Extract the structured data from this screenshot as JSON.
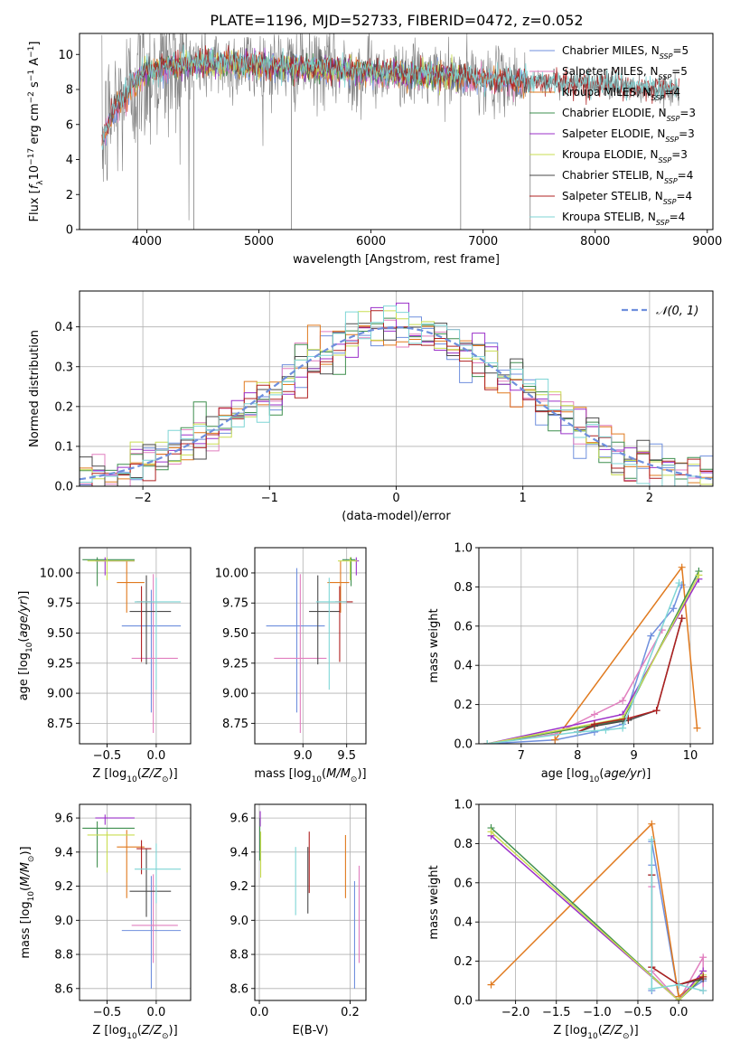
{
  "figure_title": "PLATE=1196, MJD=52733, FIBERID=0472, z=0.052",
  "colors": {
    "Chabrier MILES": "#6f8fdd",
    "Salpeter MILES": "#e17fbf",
    "Kroupa MILES": "#e07a1f",
    "Chabrier ELODIE": "#3f8f4f",
    "Salpeter ELODIE": "#9b30c9",
    "Kroupa ELODIE": "#c9dd52",
    "Chabrier STELIB": "#4a4a4a",
    "Salpeter STELIB": "#b02020",
    "Kroupa STELIB": "#7fd6d6",
    "data": "#808080",
    "normal": "#6f8fdd",
    "grid": "#b0b0b0"
  },
  "chart_data": [
    {
      "id": "spectrum",
      "type": "line",
      "xlabel": "wavelength [Angstrom, rest frame]",
      "ylabel": "Flux [f_λ 10^-17 erg cm^-2 s^-1 A^-1]",
      "xlim": [
        3400,
        9050
      ],
      "ylim": [
        0,
        11.2
      ],
      "xticks": [
        4000,
        5000,
        6000,
        7000,
        8000,
        9000
      ],
      "yticks": [
        0,
        2,
        4,
        6,
        8,
        10
      ],
      "grid": false,
      "legend_position": "right",
      "legend": [
        {
          "name": "Chabrier MILES",
          "nssp": "5"
        },
        {
          "name": "Salpeter MILES",
          "nssp": "5"
        },
        {
          "name": "Kroupa MILES",
          "nssp": "4"
        },
        {
          "name": "Chabrier ELODIE",
          "nssp": "3"
        },
        {
          "name": "Salpeter ELODIE",
          "nssp": "3"
        },
        {
          "name": "Kroupa ELODIE",
          "nssp": "3"
        },
        {
          "name": "Chabrier STELIB",
          "nssp": "4"
        },
        {
          "name": "Salpeter STELIB",
          "nssp": "4"
        },
        {
          "name": "Kroupa STELIB",
          "nssp": "4"
        }
      ],
      "observed_range": [
        3600,
        8750
      ],
      "continuum_knots": {
        "x": [
          3600,
          3700,
          3800,
          3900,
          4000,
          4200,
          4500,
          5000,
          5500,
          6000,
          6500,
          7000,
          7500,
          8000,
          8500,
          8750
        ],
        "y": [
          5.0,
          6.8,
          7.5,
          8.5,
          9.0,
          9.3,
          9.5,
          9.4,
          9.2,
          9.0,
          8.8,
          8.6,
          8.4,
          8.2,
          8.0,
          7.9
        ]
      },
      "model_ranges": {
        "Chabrier MILES": [
          3600,
          7400
        ],
        "Salpeter MILES": [
          3600,
          7400
        ],
        "Kroupa MILES": [
          3600,
          7400
        ],
        "Chabrier ELODIE": [
          3900,
          6800
        ],
        "Salpeter ELODIE": [
          3900,
          6800
        ],
        "Kroupa ELODIE": [
          3900,
          6800
        ],
        "Chabrier STELIB": [
          3600,
          8750
        ],
        "Salpeter STELIB": [
          3600,
          8750
        ],
        "Kroupa STELIB": [
          3600,
          8750
        ]
      }
    },
    {
      "id": "residuals",
      "type": "histogram",
      "xlabel": "(data-model)/error",
      "ylabel": "Normed distribution",
      "xlim": [
        -2.5,
        2.5
      ],
      "ylim": [
        0,
        0.49
      ],
      "xticks": [
        -2,
        -1,
        0,
        1,
        2
      ],
      "yticks": [
        0.0,
        0.1,
        0.2,
        0.3,
        0.4
      ],
      "grid": true,
      "bin_width": 0.1,
      "legend_position": "top-right",
      "normal_curve": {
        "label": "𝒩(0, 1)",
        "mean": 0,
        "sigma": 1
      }
    },
    {
      "id": "age_vs_Z",
      "type": "errorbar",
      "xlabel": "Z [log10(Z/Z⊙)]",
      "ylabel": "age  [log10(age/yr)]",
      "xlim": [
        -0.78,
        0.35
      ],
      "ylim": [
        8.58,
        10.21
      ],
      "xticks": [
        -0.5,
        0.0
      ],
      "yticks": [
        8.75,
        9.0,
        9.25,
        9.5,
        9.75,
        10.0
      ],
      "grid": true,
      "points": [
        {
          "model": "Chabrier MILES",
          "x": -0.05,
          "xerr": [
            0.3,
            0.3
          ],
          "y": 9.56,
          "yerr": [
            0.72,
            0.3
          ]
        },
        {
          "model": "Salpeter MILES",
          "x": -0.03,
          "xerr": [
            0.22,
            0.25
          ],
          "y": 9.29,
          "yerr": [
            0.62,
            0.7
          ]
        },
        {
          "model": "Kroupa MILES",
          "x": -0.3,
          "xerr": [
            0.1,
            0.18
          ],
          "y": 9.92,
          "yerr": [
            0.25,
            0.18
          ]
        },
        {
          "model": "Chabrier ELODIE",
          "x": -0.6,
          "xerr": [
            0.15,
            0.38
          ],
          "y": 10.11,
          "yerr": [
            0.22,
            0.02
          ]
        },
        {
          "model": "Salpeter ELODIE",
          "x": -0.52,
          "xerr": [
            0.1,
            0.3
          ],
          "y": 10.1,
          "yerr": [
            0.12,
            0.03
          ]
        },
        {
          "model": "Kroupa ELODIE",
          "x": -0.5,
          "xerr": [
            0.2,
            0.28
          ],
          "y": 10.1,
          "yerr": [
            0.16,
            0.03
          ]
        },
        {
          "model": "Chabrier STELIB",
          "x": -0.1,
          "xerr": [
            0.17,
            0.25
          ],
          "y": 9.68,
          "yerr": [
            0.44,
            0.3
          ]
        },
        {
          "model": "Salpeter STELIB",
          "x": -0.15,
          "xerr": [
            0.05,
            0.1
          ],
          "y": 9.76,
          "yerr": [
            0.5,
            0.13
          ]
        },
        {
          "model": "Kroupa STELIB",
          "x": 0.0,
          "xerr": [
            0.22,
            0.25
          ],
          "y": 9.76,
          "yerr": [
            0.73,
            0.2
          ]
        }
      ]
    },
    {
      "id": "age_vs_mass",
      "type": "errorbar",
      "xlabel": "mass [log10(M/M⊙)]",
      "ylabel": "",
      "xlim": [
        8.45,
        9.72
      ],
      "ylim": [
        8.58,
        10.21
      ],
      "xticks": [
        9.0,
        9.5
      ],
      "yticks": [
        8.75,
        9.0,
        9.25,
        9.5,
        9.75,
        10.0
      ],
      "grid": true,
      "points": [
        {
          "model": "Chabrier MILES",
          "x": 8.93,
          "xerr": [
            0.35,
            0.32
          ],
          "y": 9.56,
          "yerr": [
            0.72,
            0.48
          ]
        },
        {
          "model": "Salpeter MILES",
          "x": 8.97,
          "xerr": [
            0.3,
            0.3
          ],
          "y": 9.29,
          "yerr": [
            0.62,
            0.7
          ]
        },
        {
          "model": "Kroupa MILES",
          "x": 9.43,
          "xerr": [
            0.15,
            0.1
          ],
          "y": 9.92,
          "yerr": [
            0.25,
            0.18
          ]
        },
        {
          "model": "Chabrier ELODIE",
          "x": 9.55,
          "xerr": [
            0.1,
            0.05
          ],
          "y": 10.11,
          "yerr": [
            0.22,
            0.02
          ]
        },
        {
          "model": "Salpeter ELODIE",
          "x": 9.61,
          "xerr": [
            0.02,
            0.03
          ],
          "y": 10.1,
          "yerr": [
            0.12,
            0.03
          ]
        },
        {
          "model": "Kroupa ELODIE",
          "x": 9.54,
          "xerr": [
            0.14,
            0.08
          ],
          "y": 10.1,
          "yerr": [
            0.16,
            0.03
          ]
        },
        {
          "model": "Chabrier STELIB",
          "x": 9.17,
          "xerr": [
            0.1,
            0.25
          ],
          "y": 9.68,
          "yerr": [
            0.44,
            0.3
          ]
        },
        {
          "model": "Salpeter STELIB",
          "x": 9.42,
          "xerr": [
            0.05,
            0.15
          ],
          "y": 9.76,
          "yerr": [
            0.5,
            0.13
          ]
        },
        {
          "model": "Kroupa STELIB",
          "x": 9.3,
          "xerr": [
            0.15,
            0.2
          ],
          "y": 9.76,
          "yerr": [
            0.73,
            0.2
          ]
        }
      ]
    },
    {
      "id": "weight_vs_age",
      "type": "line",
      "xlabel": "age  [log10(age/yr)]",
      "ylabel": "mass weight",
      "xlim": [
        6.25,
        10.4
      ],
      "ylim": [
        0,
        1.0
      ],
      "xticks": [
        7,
        8,
        9,
        10
      ],
      "yticks": [
        0.0,
        0.2,
        0.4,
        0.6,
        0.8,
        1.0
      ],
      "grid": true,
      "series": [
        {
          "model": "Chabrier MILES",
          "x": [
            6.4,
            7.6,
            8.3,
            8.8,
            9.3,
            9.7,
            9.85
          ],
          "y": [
            0.0,
            0.02,
            0.06,
            0.1,
            0.55,
            0.69,
            0.81
          ]
        },
        {
          "model": "Salpeter MILES",
          "x": [
            6.4,
            7.6,
            8.3,
            8.8,
            9.5
          ],
          "y": [
            0.0,
            0.05,
            0.15,
            0.22,
            0.58
          ]
        },
        {
          "model": "Kroupa MILES",
          "x": [
            7.6,
            9.85,
            10.12
          ],
          "y": [
            0.02,
            0.9,
            0.08
          ]
        },
        {
          "model": "Chabrier ELODIE",
          "x": [
            6.4,
            8.8,
            10.15
          ],
          "y": [
            0.0,
            0.12,
            0.88
          ]
        },
        {
          "model": "Salpeter ELODIE",
          "x": [
            6.4,
            8.8,
            10.15
          ],
          "y": [
            0.0,
            0.15,
            0.84
          ]
        },
        {
          "model": "Kroupa ELODIE",
          "x": [
            6.4,
            8.8,
            10.15
          ],
          "y": [
            0.0,
            0.13,
            0.86
          ]
        },
        {
          "model": "Chabrier STELIB",
          "x": [
            8.0,
            8.3,
            8.9,
            9.4,
            9.85
          ],
          "y": [
            0.06,
            0.09,
            0.12,
            0.17,
            0.64
          ]
        },
        {
          "model": "Salpeter STELIB",
          "x": [
            8.0,
            8.3,
            8.9,
            9.4,
            9.85
          ],
          "y": [
            0.06,
            0.1,
            0.13,
            0.17,
            0.64
          ]
        },
        {
          "model": "Kroupa STELIB",
          "x": [
            6.4,
            8.0,
            8.5,
            8.8,
            9.8
          ],
          "y": [
            0.0,
            0.06,
            0.07,
            0.08,
            0.82
          ]
        }
      ]
    },
    {
      "id": "mass_vs_Z",
      "type": "errorbar",
      "xlabel": "Z [log10(Z/Z⊙)]",
      "ylabel": "mass [log10(M/M⊙)]",
      "xlim": [
        -0.78,
        0.35
      ],
      "ylim": [
        8.53,
        9.68
      ],
      "xticks": [
        -0.5,
        0.0
      ],
      "yticks": [
        8.6,
        8.8,
        9.0,
        9.2,
        9.4,
        9.6
      ],
      "grid": true,
      "points": [
        {
          "model": "Chabrier MILES",
          "x": -0.05,
          "xerr": [
            0.3,
            0.3
          ],
          "y": 8.94,
          "yerr": [
            0.34,
            0.32
          ]
        },
        {
          "model": "Salpeter MILES",
          "x": -0.03,
          "xerr": [
            0.22,
            0.25
          ],
          "y": 8.97,
          "yerr": [
            0.22,
            0.3
          ]
        },
        {
          "model": "Kroupa MILES",
          "x": -0.3,
          "xerr": [
            0.1,
            0.18
          ],
          "y": 9.43,
          "yerr": [
            0.3,
            0.1
          ]
        },
        {
          "model": "Chabrier ELODIE",
          "x": -0.6,
          "xerr": [
            0.15,
            0.38
          ],
          "y": 9.54,
          "yerr": [
            0.23,
            0.04
          ]
        },
        {
          "model": "Salpeter ELODIE",
          "x": -0.52,
          "xerr": [
            0.1,
            0.3
          ],
          "y": 9.6,
          "yerr": [
            0.04,
            0.02
          ]
        },
        {
          "model": "Kroupa ELODIE",
          "x": -0.5,
          "xerr": [
            0.2,
            0.28
          ],
          "y": 9.5,
          "yerr": [
            0.22,
            0.02
          ]
        },
        {
          "model": "Chabrier STELIB",
          "x": -0.1,
          "xerr": [
            0.17,
            0.25
          ],
          "y": 9.17,
          "yerr": [
            0.15,
            0.25
          ]
        },
        {
          "model": "Salpeter STELIB",
          "x": -0.15,
          "xerr": [
            0.05,
            0.1
          ],
          "y": 9.42,
          "yerr": [
            0.15,
            0.05
          ]
        },
        {
          "model": "Kroupa STELIB",
          "x": 0.0,
          "xerr": [
            0.22,
            0.25
          ],
          "y": 9.3,
          "yerr": [
            0.2,
            0.15
          ]
        }
      ]
    },
    {
      "id": "mass_vs_EBV",
      "type": "errorbar",
      "xlabel": "E(B-V)",
      "ylabel": "",
      "xlim": [
        -0.01,
        0.235
      ],
      "ylim": [
        8.53,
        9.68
      ],
      "xticks": [
        0.0,
        0.2
      ],
      "yticks": [
        8.6,
        8.8,
        9.0,
        9.2,
        9.4,
        9.6
      ],
      "grid": true,
      "points": [
        {
          "model": "Chabrier MILES",
          "x": 0.21,
          "xerr": [
            0,
            0
          ],
          "y": 8.9,
          "yerr": [
            0.3,
            0.33
          ]
        },
        {
          "model": "Salpeter MILES",
          "x": 0.22,
          "xerr": [
            0,
            0
          ],
          "y": 9.03,
          "yerr": [
            0.28,
            0.29
          ]
        },
        {
          "model": "Kroupa MILES",
          "x": 0.19,
          "xerr": [
            0,
            0
          ],
          "y": 9.31,
          "yerr": [
            0.18,
            0.19
          ]
        },
        {
          "model": "Chabrier ELODIE",
          "x": 0.001,
          "xerr": [
            0,
            0
          ],
          "y": 9.5,
          "yerr": [
            0.15,
            0.1
          ]
        },
        {
          "model": "Salpeter ELODIE",
          "x": 0.002,
          "xerr": [
            0,
            0
          ],
          "y": 9.59,
          "yerr": [
            0.04,
            0.05
          ]
        },
        {
          "model": "Kroupa ELODIE",
          "x": 0.003,
          "xerr": [
            0,
            0
          ],
          "y": 9.38,
          "yerr": [
            0.13,
            0.14
          ]
        },
        {
          "model": "Chabrier STELIB",
          "x": 0.107,
          "xerr": [
            0,
            0
          ],
          "y": 9.24,
          "yerr": [
            0.2,
            0.19
          ]
        },
        {
          "model": "Salpeter STELIB",
          "x": 0.11,
          "xerr": [
            0,
            0
          ],
          "y": 9.34,
          "yerr": [
            0.18,
            0.18
          ]
        },
        {
          "model": "Kroupa STELIB",
          "x": 0.08,
          "xerr": [
            0,
            0
          ],
          "y": 9.23,
          "yerr": [
            0.2,
            0.2
          ]
        }
      ]
    },
    {
      "id": "weight_vs_Z",
      "type": "line",
      "xlabel": "Z [log10(Z/Z⊙)]",
      "ylabel": "mass weight",
      "xlim": [
        -2.45,
        0.42
      ],
      "ylim": [
        0,
        1.0
      ],
      "xticks": [
        -2.0,
        -1.5,
        -1.0,
        -0.5,
        0.0
      ],
      "yticks": [
        0.0,
        0.2,
        0.4,
        0.6,
        0.8,
        1.0
      ],
      "grid": true,
      "series": [
        {
          "model": "Chabrier MILES",
          "x": [
            -0.33,
            -0.33,
            -0.33,
            0.0,
            0.3
          ],
          "y": [
            0.05,
            0.69,
            0.81,
            0.02,
            0.1
          ]
        },
        {
          "model": "Salpeter MILES",
          "x": [
            -0.33,
            -0.33,
            0.0,
            0.3,
            0.3
          ],
          "y": [
            0.58,
            0.15,
            0.0,
            0.22,
            0.05
          ]
        },
        {
          "model": "Kroupa MILES",
          "x": [
            -2.3,
            -0.33,
            0.0,
            0.3
          ],
          "y": [
            0.08,
            0.9,
            0.02,
            0.12
          ]
        },
        {
          "model": "Chabrier ELODIE",
          "x": [
            -2.3,
            0.0,
            0.3
          ],
          "y": [
            0.88,
            0.0,
            0.12
          ]
        },
        {
          "model": "Salpeter ELODIE",
          "x": [
            -2.3,
            0.0,
            0.3
          ],
          "y": [
            0.84,
            0.0,
            0.15
          ]
        },
        {
          "model": "Kroupa ELODIE",
          "x": [
            -2.3,
            0.0,
            0.3
          ],
          "y": [
            0.86,
            0.0,
            0.13
          ]
        },
        {
          "model": "Chabrier STELIB",
          "x": [
            -0.33,
            -0.33,
            0.0,
            0.3
          ],
          "y": [
            0.64,
            0.17,
            0.08,
            0.11
          ]
        },
        {
          "model": "Salpeter STELIB",
          "x": [
            -0.33,
            -0.33,
            0.0,
            0.3
          ],
          "y": [
            0.64,
            0.17,
            0.08,
            0.12
          ]
        },
        {
          "model": "Kroupa STELIB",
          "x": [
            -0.33,
            -0.33,
            0.0,
            0.3
          ],
          "y": [
            0.82,
            0.06,
            0.08,
            0.05
          ]
        }
      ]
    }
  ]
}
